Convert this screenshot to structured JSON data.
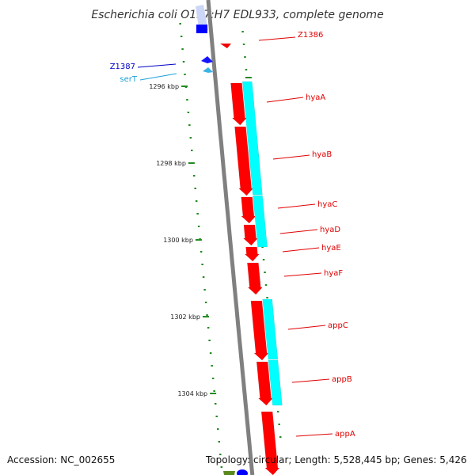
{
  "title": "Escherichia coli O157:H7 EDL933, complete genome",
  "footer": {
    "accession": "Accession: NC_002655",
    "topology": "Topology: circular; Length: 5,528,445 bp; Genes: 5,426"
  },
  "colors": {
    "backbone": "#808080",
    "forward_gene": "#ff0000",
    "cds": "#00ffff",
    "reverse_gene": "#0000ff",
    "rna": "#00b0f0",
    "tick": "#228b22"
  },
  "kbp_labels": [
    "1296 kbp",
    "1298 kbp",
    "1300 kbp",
    "1302 kbp",
    "1304 kbp"
  ],
  "genes": [
    {
      "name": "Z1386",
      "strand": "forward",
      "color": "#e00000"
    },
    {
      "name": "Z1387",
      "strand": "reverse",
      "color": "#0000c8"
    },
    {
      "name": "serT",
      "strand": "reverse",
      "color": "#1ea0d8"
    },
    {
      "name": "hyaA",
      "strand": "forward",
      "color": "#e00000"
    },
    {
      "name": "hyaB",
      "strand": "forward",
      "color": "#e00000"
    },
    {
      "name": "hyaC",
      "strand": "forward",
      "color": "#e00000"
    },
    {
      "name": "hyaD",
      "strand": "forward",
      "color": "#e00000"
    },
    {
      "name": "hyaE",
      "strand": "forward",
      "color": "#e00000"
    },
    {
      "name": "hyaF",
      "strand": "forward",
      "color": "#e00000"
    },
    {
      "name": "appC",
      "strand": "forward",
      "color": "#e00000"
    },
    {
      "name": "appB",
      "strand": "forward",
      "color": "#e00000"
    },
    {
      "name": "appA",
      "strand": "forward",
      "color": "#e00000"
    }
  ]
}
